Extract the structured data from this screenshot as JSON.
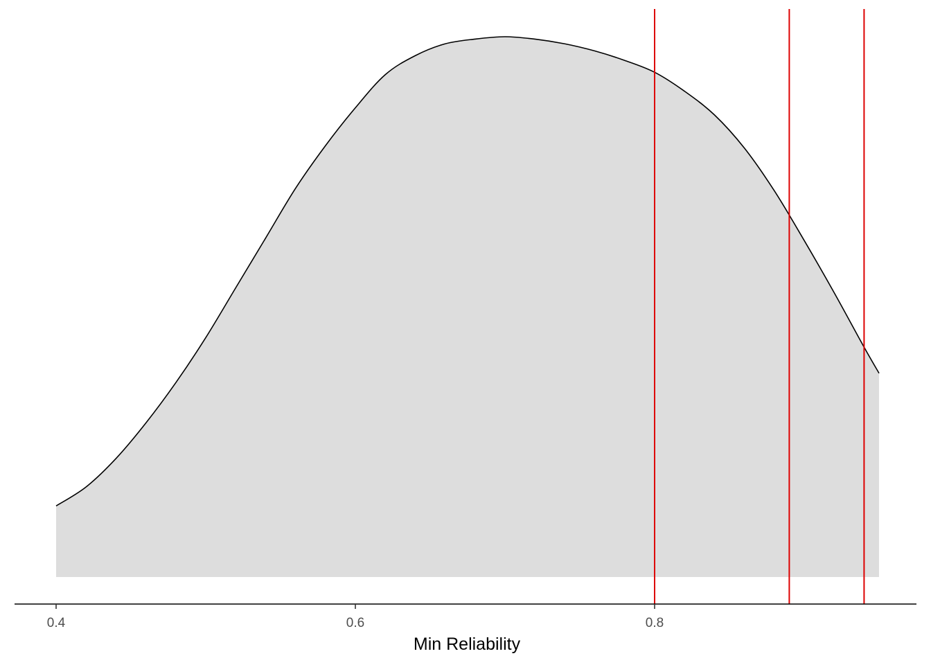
{
  "chart_data": {
    "type": "area",
    "title": "",
    "xlabel": "Min Reliability",
    "ylabel": "",
    "xlim": [
      0.4,
      0.95
    ],
    "ylim": [
      0,
      2.35
    ],
    "x_ticks": [
      0.4,
      0.6,
      0.8
    ],
    "x_tick_labels": [
      "0.4",
      "0.6",
      "0.8"
    ],
    "grid": false,
    "legend": "none",
    "fill_color": "#dddddd",
    "line_color": "#000000",
    "series": [
      {
        "x": [
          0.4,
          0.42,
          0.44,
          0.46,
          0.48,
          0.5,
          0.52,
          0.54,
          0.56,
          0.58,
          0.6,
          0.62,
          0.64,
          0.66,
          0.68,
          0.7,
          0.72,
          0.74,
          0.76,
          0.78,
          0.8,
          0.82,
          0.84,
          0.86,
          0.88,
          0.9,
          0.92,
          0.94,
          0.95
        ],
        "y": [
          0.3,
          0.38,
          0.5,
          0.65,
          0.82,
          1.01,
          1.22,
          1.43,
          1.64,
          1.82,
          1.98,
          2.12,
          2.2,
          2.25,
          2.27,
          2.28,
          2.27,
          2.25,
          2.22,
          2.18,
          2.13,
          2.05,
          1.95,
          1.81,
          1.63,
          1.42,
          1.2,
          0.97,
          0.86
        ]
      }
    ],
    "vlines": {
      "color": "#dd0000",
      "x": [
        0.8,
        0.89,
        0.94
      ]
    }
  }
}
